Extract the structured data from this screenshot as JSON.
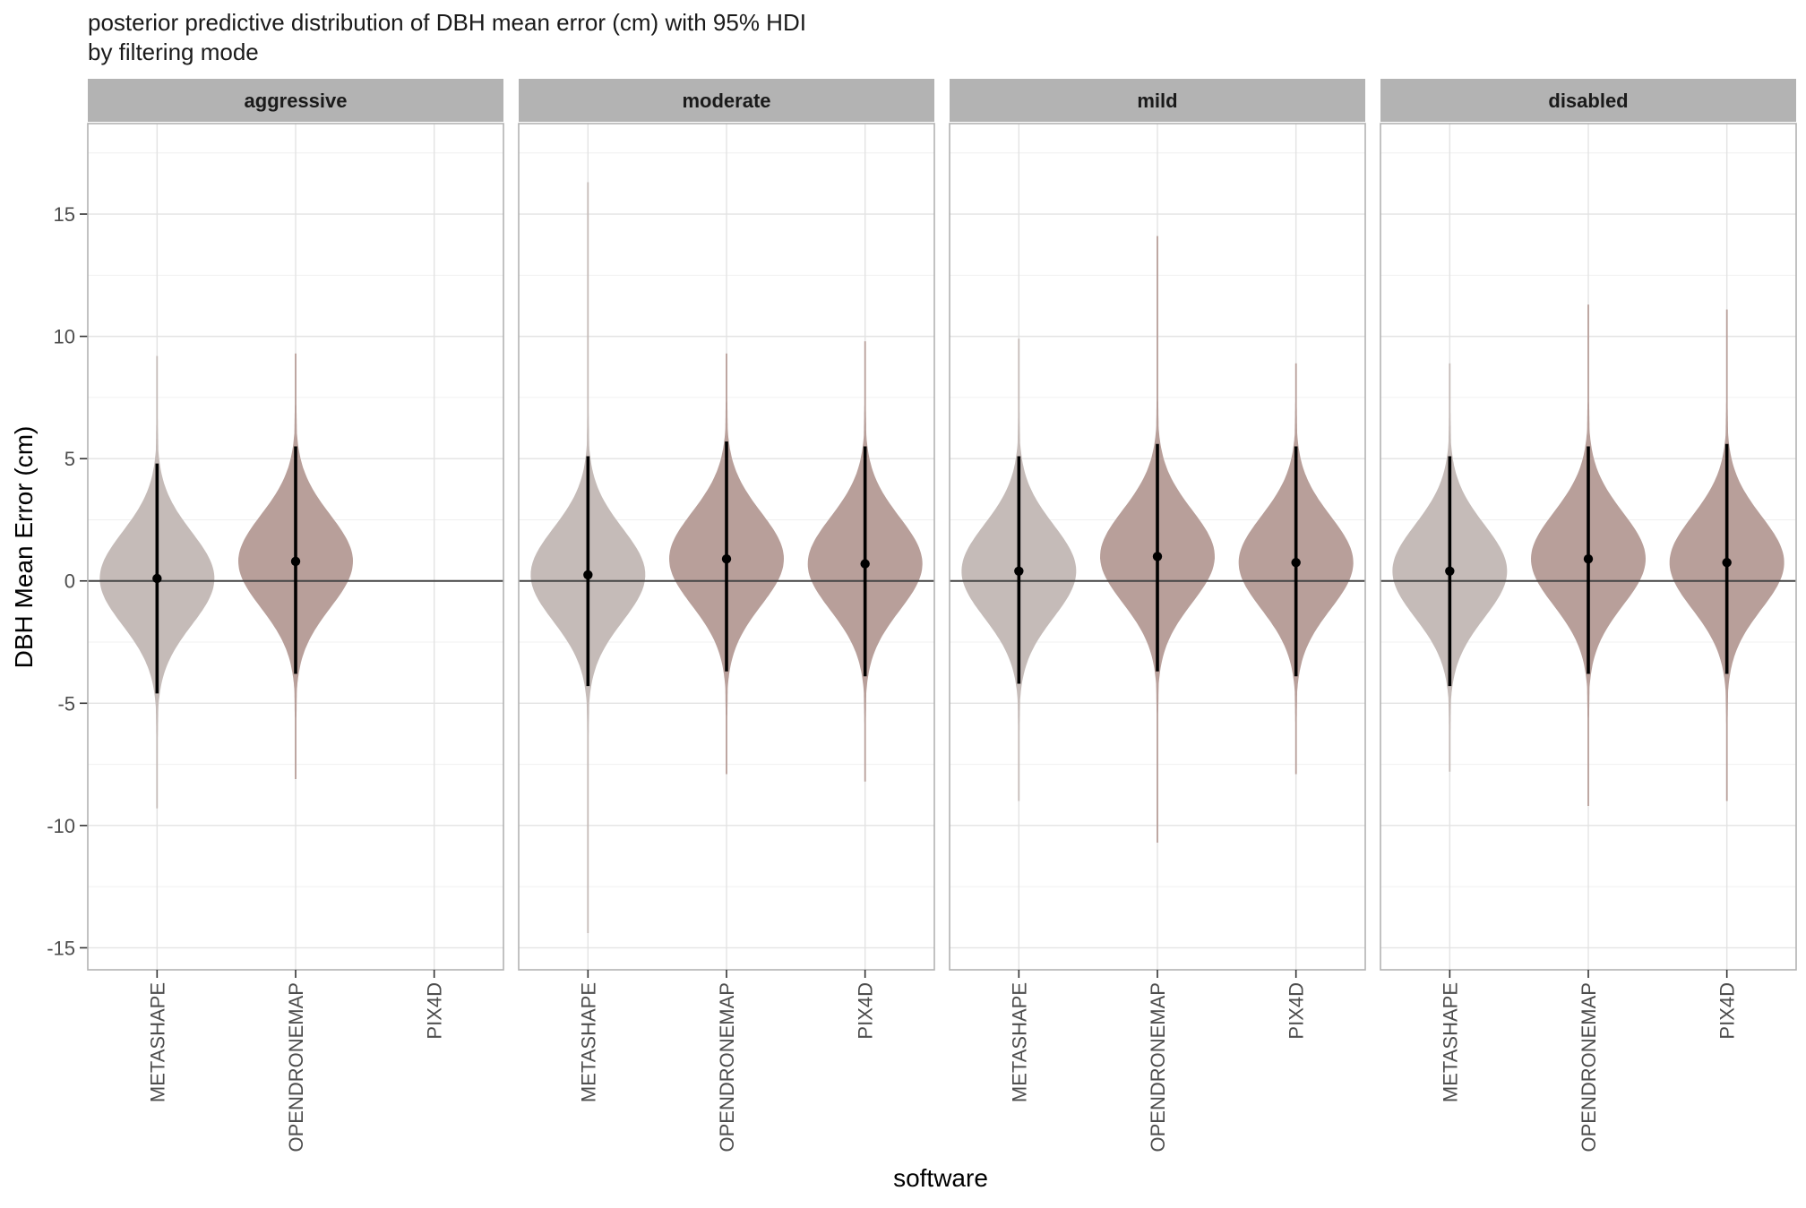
{
  "chart_data": {
    "type": "violin",
    "title": "posterior predictive distribution of DBH mean error (cm) with 95% HDI",
    "subtitle": "by filtering mode",
    "xlabel": "software",
    "ylabel": "DBH Mean Error (cm)",
    "ylim": [
      -15.9,
      18.7
    ],
    "yticks": [
      -15,
      -10,
      -5,
      0,
      5,
      10,
      15
    ],
    "reference_line": 0,
    "grid": true,
    "categories": [
      "METASHAPE",
      "OPENDRONEMAP",
      "PIX4D"
    ],
    "colors": {
      "METASHAPE": "#c5bbb8",
      "OPENDRONEMAP": "#b89f9a",
      "PIX4D": "#b89f9a"
    },
    "panels": [
      {
        "facet": "aggressive",
        "violins": [
          {
            "software": "METASHAPE",
            "median": 0.1,
            "hdi_low": -4.6,
            "hdi_high": 4.8,
            "min": -9.3,
            "max": 9.2
          },
          {
            "software": "OPENDRONEMAP",
            "median": 0.8,
            "hdi_low": -3.8,
            "hdi_high": 5.5,
            "min": -8.1,
            "max": 9.3
          }
        ]
      },
      {
        "facet": "moderate",
        "violins": [
          {
            "software": "METASHAPE",
            "median": 0.25,
            "hdi_low": -4.3,
            "hdi_high": 5.1,
            "min": -14.4,
            "max": 16.3
          },
          {
            "software": "OPENDRONEMAP",
            "median": 0.9,
            "hdi_low": -3.7,
            "hdi_high": 5.7,
            "min": -7.9,
            "max": 9.3
          },
          {
            "software": "PIX4D",
            "median": 0.7,
            "hdi_low": -3.9,
            "hdi_high": 5.5,
            "min": -8.2,
            "max": 9.8
          }
        ]
      },
      {
        "facet": "mild",
        "violins": [
          {
            "software": "METASHAPE",
            "median": 0.4,
            "hdi_low": -4.2,
            "hdi_high": 5.1,
            "min": -9.0,
            "max": 9.9
          },
          {
            "software": "OPENDRONEMAP",
            "median": 1.0,
            "hdi_low": -3.7,
            "hdi_high": 5.6,
            "min": -10.7,
            "max": 14.1
          },
          {
            "software": "PIX4D",
            "median": 0.75,
            "hdi_low": -3.9,
            "hdi_high": 5.5,
            "min": -7.9,
            "max": 8.9
          }
        ]
      },
      {
        "facet": "disabled",
        "violins": [
          {
            "software": "METASHAPE",
            "median": 0.4,
            "hdi_low": -4.3,
            "hdi_high": 5.1,
            "min": -7.8,
            "max": 8.9
          },
          {
            "software": "OPENDRONEMAP",
            "median": 0.9,
            "hdi_low": -3.8,
            "hdi_high": 5.5,
            "min": -9.2,
            "max": 11.3
          },
          {
            "software": "PIX4D",
            "median": 0.75,
            "hdi_low": -3.8,
            "hdi_high": 5.6,
            "min": -9.0,
            "max": 11.1
          }
        ]
      }
    ]
  }
}
